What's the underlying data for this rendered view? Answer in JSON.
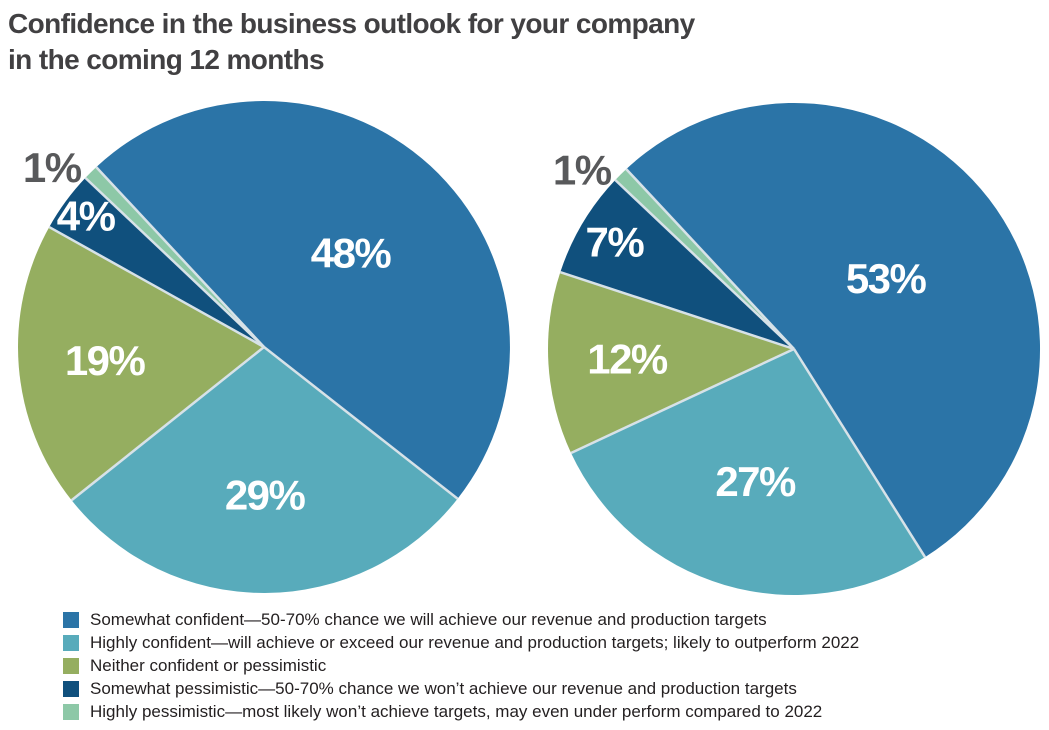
{
  "title": {
    "line1": "Confidence in the business outlook for your company",
    "line2": "in the coming 12 months"
  },
  "palette": {
    "somewhat_confident": "#2b74a7",
    "highly_confident": "#58abbb",
    "neither_confident_or_pessimistic": "#95ae60",
    "somewhat_pessimistic": "#10507d",
    "highly_pessimistic": "#8dc8a7",
    "slice_separator": "#d7e2e8",
    "title_text": "#414042",
    "inside_label_text": "#ffffff",
    "outside_label_text": "#58595b",
    "legend_text": "#231f20",
    "background": "#ffffff"
  },
  "chart_data": [
    {
      "type": "pie",
      "name": "left-pie",
      "categories": [
        "Somewhat confident",
        "Highly confident",
        "Neither confident or pessimistic",
        "Somewhat pessimistic",
        "Highly pessimistic"
      ],
      "values": [
        48,
        29,
        19,
        4,
        1
      ],
      "slice_labels": [
        "48%",
        "29%",
        "19%",
        "4%",
        "1%"
      ],
      "colors": [
        "#2b74a7",
        "#58abbb",
        "#95ae60",
        "#10507d",
        "#8dc8a7"
      ],
      "start_angle_deg": 133,
      "direction": "clockwise",
      "label_radius_frac": [
        0.52,
        0.6,
        0.65,
        0.9,
        1.13
      ],
      "label_angle_offset_deg": [
        0,
        0,
        0,
        0,
        5
      ],
      "label_colors": [
        "#ffffff",
        "#ffffff",
        "#ffffff",
        "#ffffff",
        "#58595b"
      ]
    },
    {
      "type": "pie",
      "name": "right-pie",
      "categories": [
        "Somewhat confident",
        "Highly confident",
        "Neither confident or pessimistic",
        "Somewhat pessimistic",
        "Highly pessimistic"
      ],
      "values": [
        53,
        27,
        12,
        7,
        1
      ],
      "slice_labels": [
        "53%",
        "27%",
        "12%",
        "7%",
        "1%"
      ],
      "colors": [
        "#2b74a7",
        "#58abbb",
        "#95ae60",
        "#10507d",
        "#8dc8a7"
      ],
      "start_angle_deg": 133,
      "direction": "clockwise",
      "label_radius_frac": [
        0.47,
        0.56,
        0.68,
        0.85,
        1.13
      ],
      "label_angle_offset_deg": [
        0,
        0,
        0,
        0,
        5
      ],
      "label_colors": [
        "#ffffff",
        "#ffffff",
        "#ffffff",
        "#ffffff",
        "#58595b"
      ]
    }
  ],
  "legend": {
    "position": "bottom-left",
    "items": [
      {
        "label": "Somewhat confident—50-70% chance we will achieve our revenue and production targets",
        "color": "#2b74a7"
      },
      {
        "label": "Highly confident—will achieve or exceed our revenue and production targets; likely to outperform 2022",
        "color": "#58abbb"
      },
      {
        "label": "Neither confident or pessimistic",
        "color": "#95ae60"
      },
      {
        "label": "Somewhat pessimistic—50-70% chance we won’t achieve our revenue and production targets",
        "color": "#10507d"
      },
      {
        "label": "Highly pessimistic—most likely won’t achieve targets, may even under perform compared to 2022",
        "color": "#8dc8a7"
      }
    ]
  }
}
